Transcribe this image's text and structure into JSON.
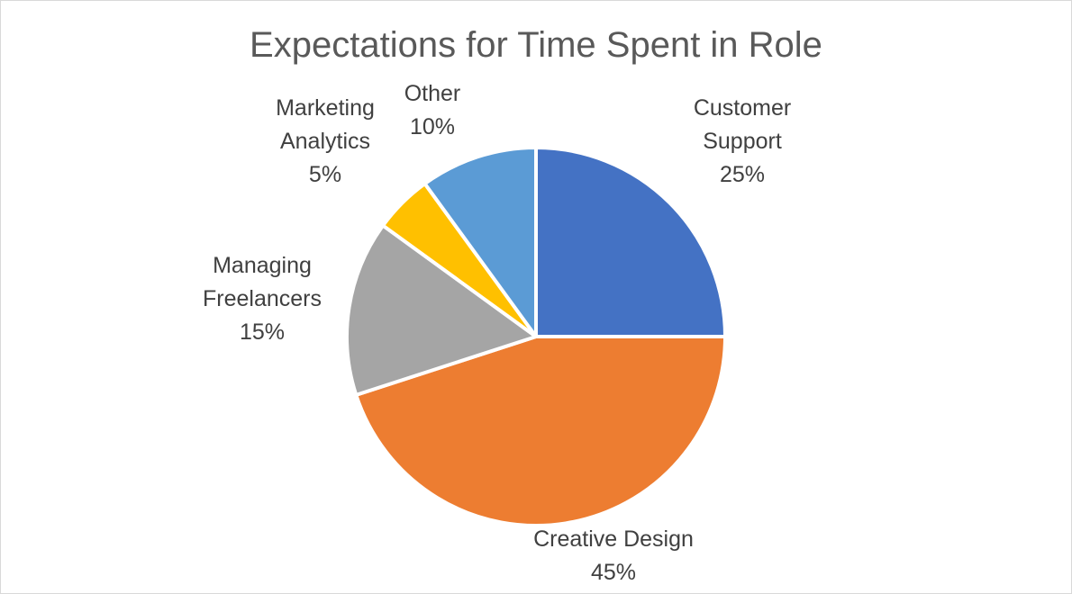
{
  "chart_data": {
    "type": "pie",
    "title": "Expectations for Time Spent in Role",
    "slices": [
      {
        "label_lines": [
          "Customer",
          "Support"
        ],
        "percent_label": "25%",
        "value": 25,
        "color": "#4472C4"
      },
      {
        "label_lines": [
          "Creative Design"
        ],
        "percent_label": "45%",
        "value": 45,
        "color": "#ED7D31"
      },
      {
        "label_lines": [
          "Managing",
          "Freelancers"
        ],
        "percent_label": "15%",
        "value": 15,
        "color": "#A5A5A5"
      },
      {
        "label_lines": [
          "Marketing",
          "Analytics"
        ],
        "percent_label": "5%",
        "value": 5,
        "color": "#FFC000"
      },
      {
        "label_lines": [
          "Other"
        ],
        "percent_label": "10%",
        "value": 10,
        "color": "#5B9BD5"
      }
    ],
    "start_angle": "12 o'clock",
    "direction": "clockwise",
    "legend": "none"
  }
}
